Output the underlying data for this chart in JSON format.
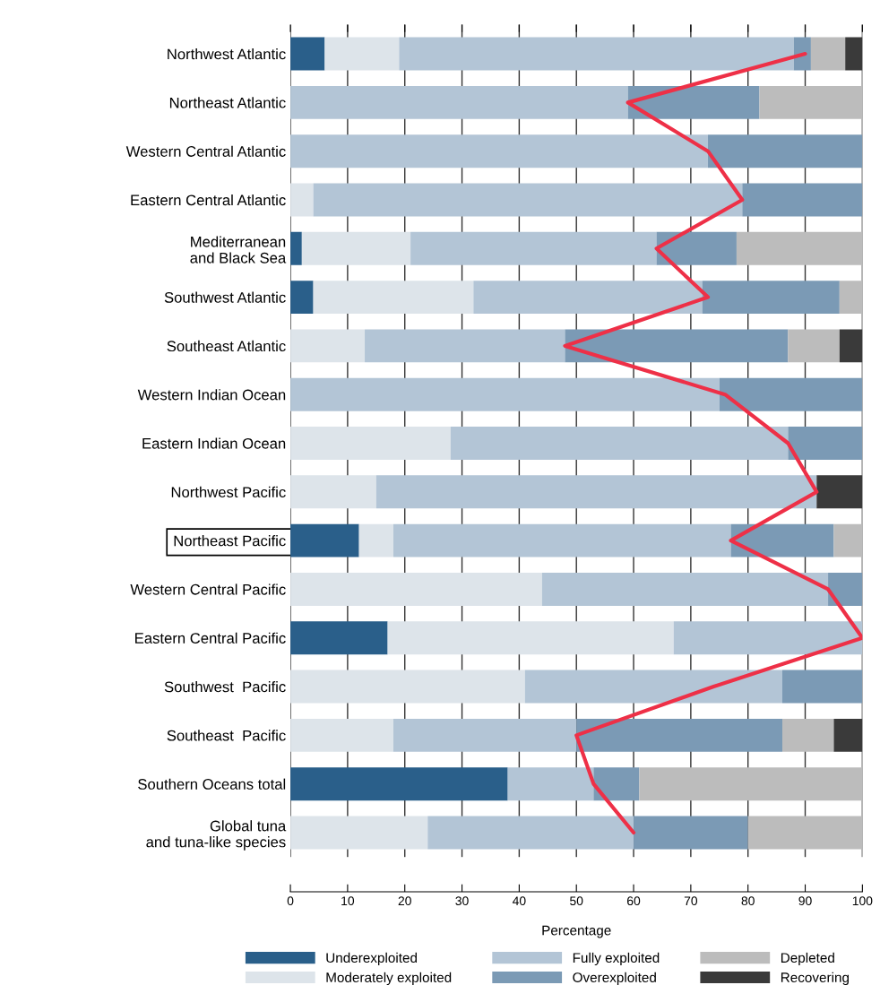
{
  "chart_data": {
    "type": "bar",
    "orientation": "horizontal",
    "stacked": true,
    "xlabel": "Percentage",
    "categories": [
      "Northwest Atlantic",
      "Northeast Atlantic",
      "Western Central Atlantic",
      "Eastern Central Atlantic",
      "Mediterranean\nand Black Sea",
      "Southwest Atlantic",
      "Southeast Atlantic",
      "Western Indian Ocean",
      "Eastern Indian Ocean",
      "Northwest Pacific",
      "Northeast Pacific",
      "Western Central Pacific",
      "Eastern Central Pacific",
      "Southwest  Pacific",
      "Southeast  Pacific",
      "Southern Oceans total",
      "Global tuna\nand tuna-like species"
    ],
    "series": [
      {
        "name": "Underexploited",
        "color": "#2a5f8a",
        "values": [
          6,
          0,
          0,
          0,
          2,
          4,
          0,
          0,
          0,
          0,
          12,
          0,
          17,
          0,
          0,
          38,
          0
        ]
      },
      {
        "name": "Moderately exploited",
        "color": "#dde4ea",
        "values": [
          13,
          0,
          0,
          4,
          19,
          28,
          13,
          0,
          28,
          15,
          6,
          44,
          50,
          41,
          18,
          0,
          24
        ]
      },
      {
        "name": "Fully exploited",
        "color": "#b3c5d6",
        "values": [
          69,
          59,
          73,
          75,
          43,
          40,
          35,
          75,
          59,
          77,
          59,
          50,
          33,
          45,
          32,
          15,
          36
        ]
      },
      {
        "name": "Overexploited",
        "color": "#7b9ab5",
        "values": [
          3,
          23,
          27,
          21,
          14,
          24,
          39,
          25,
          13,
          0,
          18,
          6,
          0,
          14,
          36,
          8,
          20
        ]
      },
      {
        "name": "Depleted",
        "color": "#bcbcbc",
        "values": [
          6,
          18,
          0,
          0,
          22,
          4,
          9,
          0,
          0,
          0,
          5,
          0,
          0,
          0,
          9,
          39,
          20
        ]
      },
      {
        "name": "Recovering",
        "color": "#3a3a3a",
        "values": [
          3,
          0,
          0,
          0,
          0,
          0,
          4,
          0,
          0,
          8,
          0,
          0,
          0,
          0,
          5,
          0,
          0
        ]
      },
      {
        "type": "line",
        "color": "#ee3047",
        "values": [
          90,
          59,
          73,
          79,
          64,
          73,
          48,
          76,
          87,
          92,
          77,
          94,
          100,
          74,
          50,
          53,
          60
        ]
      }
    ],
    "xlim": [
      0,
      100
    ],
    "xticks": [
      0,
      10,
      20,
      30,
      40,
      50,
      60,
      70,
      80,
      90,
      100
    ],
    "grid": "x",
    "legend": "bottom"
  }
}
